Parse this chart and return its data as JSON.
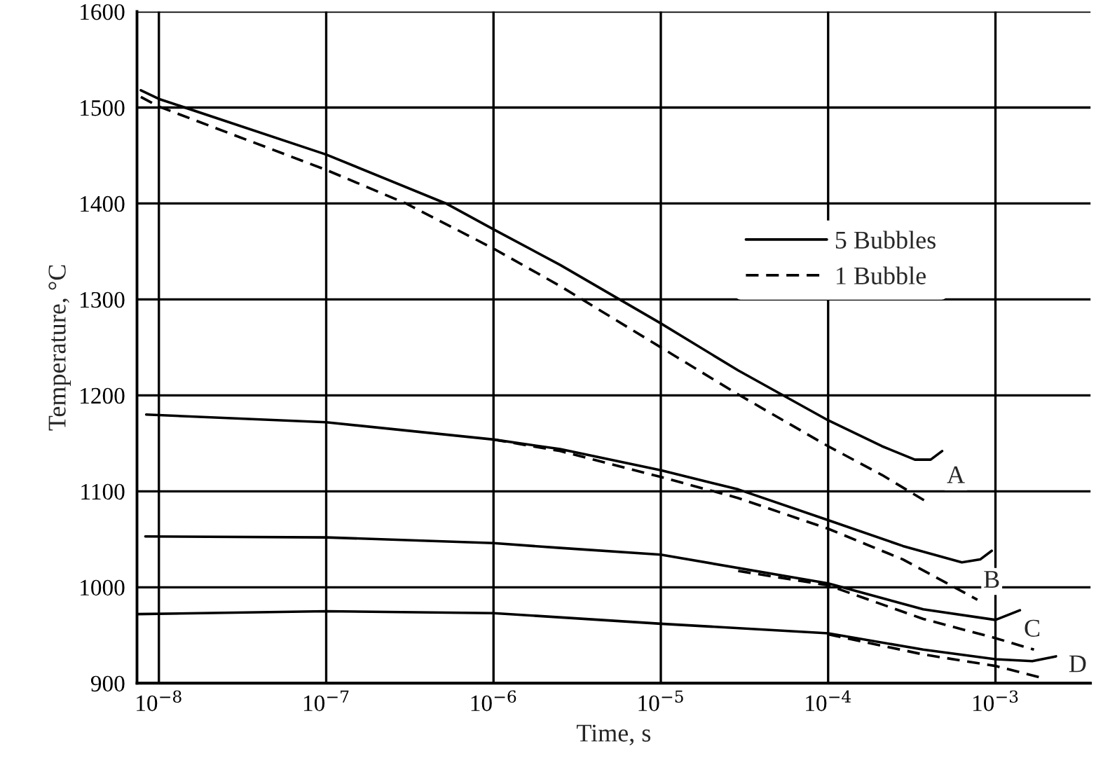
{
  "chart_data": {
    "type": "line",
    "xlabel": "Time, s",
    "ylabel": "Temperature, °C",
    "log": "x",
    "grid": true,
    "legend": "right",
    "marker": "none",
    "xlim": [
      7.4e-09,
      0.0037
    ],
    "ylim": [
      900,
      1600
    ],
    "xticks": [
      {
        "value": 1e-08,
        "label": "10$^{−8}$"
      },
      {
        "value": 1e-07,
        "label": "10$^{−7}$"
      },
      {
        "value": 1e-06,
        "label": "10$^{−6}$"
      },
      {
        "value": 1e-05,
        "label": "10$^{−5}$"
      },
      {
        "value": 0.0001,
        "label": "10$^{−4}$"
      },
      {
        "value": 0.001,
        "label": "10$^{−3}$"
      }
    ],
    "yticks": [
      900,
      1000,
      1100,
      1200,
      1300,
      1400,
      1500,
      1600
    ],
    "series": [
      {
        "name": "5 Bubbles",
        "color": "#000000",
        "line_style": "solid",
        "x": [
          7.8e-09,
          1e-08,
          1e-07,
          5.2e-07,
          1e-06,
          2.5e-06,
          1e-05,
          2.9e-05,
          0.0001,
          0.00021,
          0.00033,
          0.00041,
          0.00048
        ],
        "values": [
          1518,
          1509,
          1451,
          1400,
          1373,
          1336,
          1275,
          1226,
          1174,
          1147,
          1133,
          1133,
          1142
        ]
      },
      {
        "name": "1 Bubble",
        "color": "#000000",
        "line_style": "dashed",
        "x": [
          7.8e-09,
          1e-08,
          1e-07,
          3e-07,
          1e-06,
          2.5e-06,
          1e-05,
          2.9e-05,
          0.0001,
          0.00021,
          0.00038
        ],
        "values": [
          1511,
          1501,
          1435,
          1400,
          1353,
          1314,
          1250,
          1201,
          1147,
          1117,
          1090
        ]
      },
      {
        "color": "#000000",
        "line_style": "solid",
        "x": [
          8.4e-09,
          1e-07,
          1e-06,
          2.5e-06,
          1e-05,
          2.9e-05,
          0.0001,
          0.00028,
          0.00063,
          0.00081,
          0.00095
        ],
        "values": [
          1180,
          1172,
          1154,
          1144,
          1122,
          1102,
          1070,
          1043,
          1026,
          1029,
          1038
        ]
      },
      {
        "color": "#000000",
        "line_style": "dashed",
        "x": [
          1e-06,
          2.5e-06,
          1e-05,
          2.9e-05,
          0.0001,
          0.00028,
          0.00078
        ],
        "values": [
          1154,
          1142,
          1115,
          1093,
          1061,
          1029,
          987
        ]
      },
      {
        "color": "#000000",
        "line_style": "solid",
        "x": [
          8.3e-09,
          1e-07,
          1e-06,
          2.5e-06,
          1e-05,
          0.0001,
          0.00037,
          0.001,
          0.0014
        ],
        "values": [
          1053,
          1052,
          1046,
          1041,
          1034,
          1004,
          977,
          966,
          976
        ]
      },
      {
        "color": "#000000",
        "line_style": "dashed",
        "x": [
          2.9e-05,
          0.0001,
          0.00037,
          0.001,
          0.0017
        ],
        "values": [
          1017,
          1002,
          967,
          947,
          935
        ]
      },
      {
        "color": "#000000",
        "line_style": "solid",
        "x": [
          7.4e-09,
          1e-07,
          1e-06,
          1e-05,
          0.0001,
          0.00037,
          0.001,
          0.00166,
          0.0023
        ],
        "values": [
          972,
          975,
          973,
          962,
          952,
          935,
          925,
          923,
          928
        ]
      },
      {
        "color": "#000000",
        "line_style": "dashed",
        "x": [
          0.0001,
          0.00037,
          0.001,
          0.00195
        ],
        "values": [
          951,
          930,
          918,
          905
        ]
      }
    ],
    "annotations": [
      {
        "text": "A",
        "x": 0.00058,
        "y": 1115
      },
      {
        "text": "B",
        "x": 0.00095,
        "y": 1006
      },
      {
        "text": "C",
        "x": 0.00166,
        "y": 955
      },
      {
        "text": "D",
        "x": 0.0031,
        "y": 918
      }
    ]
  }
}
